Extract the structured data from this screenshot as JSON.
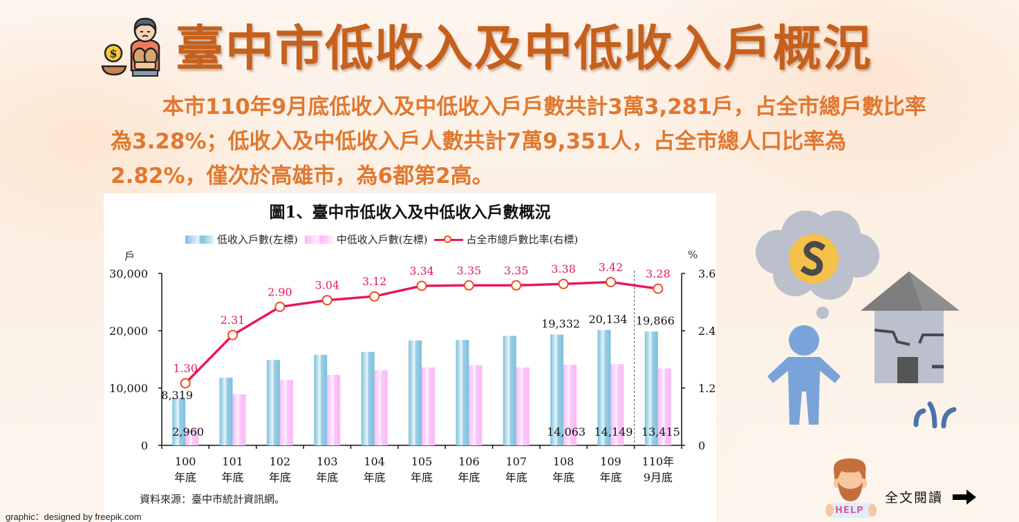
{
  "header": {
    "title": "臺中市低收入及中低收入戶概況",
    "icon": "poor-person-coin-icon"
  },
  "intro": {
    "text": "本市110年9月底低收入及中低收入戶戶數共計3萬3,281戶，占全市總戶數比率為3.28%；低收入及中低收入戶人數共計7萬9,351人，占全市總人口比率為2.82%，僅次於高雄市，為6都第2高。"
  },
  "chart": {
    "title": "圖1、臺中市低收入及中低收入戶數概況",
    "legend": {
      "low_income": "低收入戶數(左標)",
      "mid_low_income": "中低收入戶數(左標)",
      "ratio": "占全市總戶數比率(右標)"
    },
    "left_unit": "戶",
    "right_unit": "%",
    "source": "資料來源：臺中市統計資訊網。"
  },
  "chart_data": {
    "type": "bar",
    "title": "圖1、臺中市低收入及中低收入戶數概況",
    "categories": [
      "100年底",
      "101年底",
      "102年底",
      "103年底",
      "104年底",
      "105年底",
      "106年底",
      "107年底",
      "108年底",
      "109年底",
      "110年9月底"
    ],
    "category_lines": [
      [
        "100",
        "年底"
      ],
      [
        "101",
        "年底"
      ],
      [
        "102",
        "年底"
      ],
      [
        "103",
        "年底"
      ],
      [
        "104",
        "年底"
      ],
      [
        "105",
        "年底"
      ],
      [
        "106",
        "年底"
      ],
      [
        "107",
        "年底"
      ],
      [
        "108",
        "年底"
      ],
      [
        "109",
        "年底"
      ],
      [
        "110年",
        "9月底"
      ]
    ],
    "series": [
      {
        "name": "低收入戶數(左標)",
        "type": "bar",
        "axis": "left",
        "color": "#7cc0dd",
        "values": [
          8319,
          11800,
          14900,
          15800,
          16300,
          18300,
          18400,
          19100,
          19332,
          20134,
          19866
        ],
        "labels": [
          "8,319",
          "",
          "",
          "",
          "",
          "",
          "",
          "",
          "19,332",
          "20,134",
          "19,866"
        ]
      },
      {
        "name": "中低收入戶數(左標)",
        "type": "bar",
        "axis": "left",
        "color": "#fbb8f8",
        "values": [
          2960,
          8900,
          11400,
          12300,
          13100,
          13600,
          14000,
          13600,
          14063,
          14149,
          13415
        ],
        "labels": [
          "2,960",
          "",
          "",
          "",
          "",
          "",
          "",
          "",
          "14,063",
          "14,149",
          "13,415"
        ]
      },
      {
        "name": "占全市總戶數比率(右標)",
        "type": "line",
        "axis": "right",
        "color": "#e8175d",
        "values": [
          1.3,
          2.31,
          2.9,
          3.04,
          3.12,
          3.34,
          3.35,
          3.35,
          3.38,
          3.42,
          3.28
        ],
        "labels": [
          "1.30",
          "2.31",
          "2.90",
          "3.04",
          "3.12",
          "3.34",
          "3.35",
          "3.35",
          "3.38",
          "3.42",
          "3.28"
        ]
      }
    ],
    "xlabel": "",
    "ylabel_left": "戶",
    "ylabel_right": "%",
    "ylim_left": [
      0,
      30000
    ],
    "ylim_right": [
      0,
      3.6
    ],
    "yticks_left": [
      "0",
      "10,000",
      "20,000",
      "30,000"
    ],
    "yticks_right": [
      "0",
      "1.20",
      "2.40",
      "3.60"
    ],
    "grid": false,
    "legend_position": "top",
    "annotations": [
      "dashed separator between 109年底 and 110年9月底"
    ]
  },
  "illustration": {
    "description": "person-thinking-money-broken-house-icon"
  },
  "read_more": {
    "label": "全文閱讀",
    "icon": "arrow-right-icon"
  },
  "help_badge": "HELP",
  "credit": "graphic：designed by freepik.com"
}
